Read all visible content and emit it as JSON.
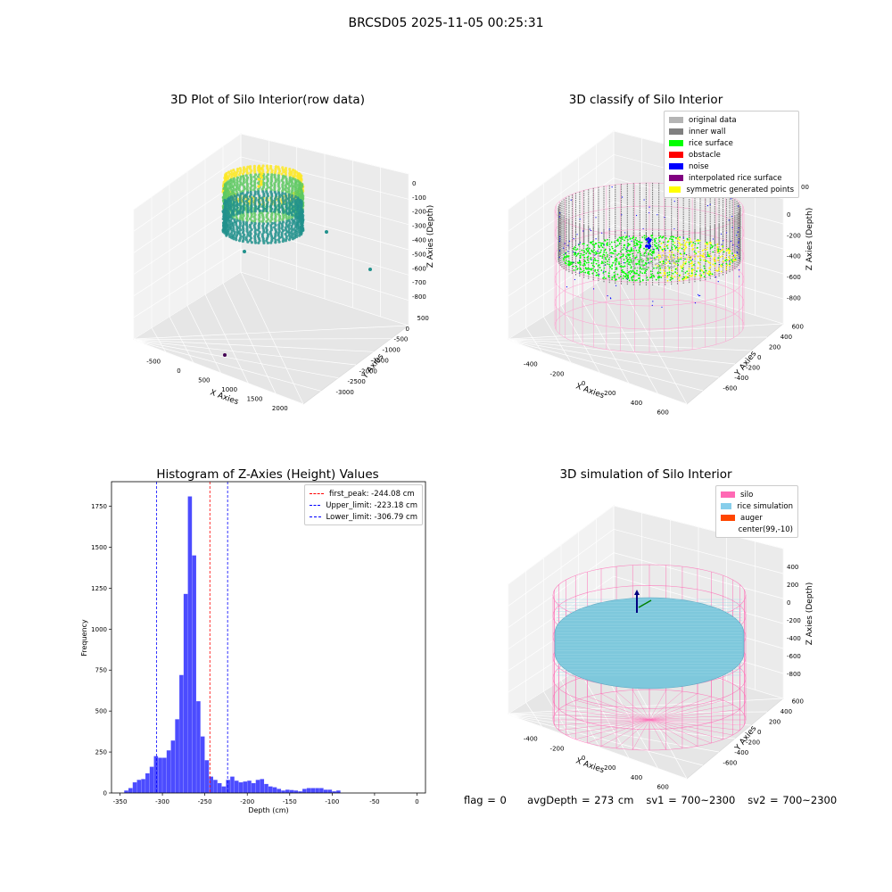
{
  "suptitle": "BRCSD05 2025-11-05 00:25:31",
  "footer": {
    "flag": "flag = 0",
    "avg_depth": "avgDepth = 273 cm",
    "sv1": "sv1 = 700~2300",
    "sv2": "sv2 = 700~2300"
  },
  "chart_data": [
    {
      "type": "scatter",
      "kind": "3d",
      "title": "3D Plot of Silo Interior(row data)",
      "xlabel": "X Axies",
      "ylabel": "Y Axies",
      "zlabel": "Z Axies (Depth)",
      "x_ticks": [
        "-500",
        "0",
        "500",
        "1000",
        "1500",
        "2000"
      ],
      "y_ticks": [
        "500",
        "0",
        "-500",
        "-1000",
        "-1500",
        "-2000",
        "-2500",
        "-3000"
      ],
      "z_ticks": [
        "0",
        "-100",
        "-200",
        "-300",
        "-400",
        "-500",
        "-600",
        "-700",
        "-800"
      ],
      "colormap": [
        "#440154",
        "#21918c",
        "#5ec962",
        "#fde725"
      ],
      "outliers": [
        {
          "x": 700,
          "y": -2900,
          "z": -800
        },
        {
          "x": 200,
          "y": -300,
          "z": -450
        },
        {
          "x": 1500,
          "y": -1200,
          "z": -450
        },
        {
          "x": 1600,
          "y": -500,
          "z": -350
        }
      ]
    },
    {
      "type": "scatter",
      "kind": "3d",
      "title": "3D classify of Silo Interior",
      "xlabel": "X Axies",
      "ylabel": "Y Axies",
      "zlabel": "Z Axies (Depth)",
      "x_ticks": [
        "-400",
        "-200",
        "0",
        "200",
        "400",
        "600"
      ],
      "y_ticks": [
        "600",
        "400",
        "200",
        "0",
        "-200",
        "-400",
        "-600"
      ],
      "z_ticks": [
        "200",
        "0",
        "-200",
        "-400",
        "-600",
        "-800"
      ],
      "z_ticks_partial": [
        "00"
      ],
      "legend": [
        {
          "label": "original data",
          "color": "#b4b4b4"
        },
        {
          "label": "inner wall",
          "color": "#808080"
        },
        {
          "label": "rice surface",
          "color": "#00ff00"
        },
        {
          "label": "obstacle",
          "color": "#ff0000"
        },
        {
          "label": "noise",
          "color": "#0000ff"
        },
        {
          "label": "interpolated rice surface",
          "color": "#800080"
        },
        {
          "label": "symmetric generated points",
          "color": "#ffff00"
        }
      ]
    },
    {
      "type": "bar",
      "kind": "histogram",
      "title": "Histogram of Z-Axies (Height) Values",
      "xlabel": "Depth (cm)",
      "ylabel": "Frequency",
      "xlim": [
        -360,
        10
      ],
      "ylim": [
        0,
        1900
      ],
      "x_ticks": [
        -350,
        -300,
        -250,
        -200,
        -150,
        -100,
        -50,
        0
      ],
      "y_ticks": [
        0,
        250,
        500,
        750,
        1000,
        1250,
        1500,
        1750
      ],
      "bar_color": "#4c4cff",
      "bins": {
        "start": -350,
        "width": 5,
        "counts": [
          0,
          15,
          30,
          65,
          80,
          85,
          120,
          160,
          225,
          215,
          215,
          260,
          320,
          450,
          720,
          1215,
          1810,
          1450,
          560,
          345,
          200,
          100,
          80,
          60,
          40,
          80,
          100,
          75,
          65,
          70,
          75,
          60,
          80,
          85,
          55,
          40,
          35,
          25,
          15,
          20,
          18,
          15,
          10,
          25,
          30,
          30,
          30,
          30,
          20,
          20,
          10,
          15
        ]
      },
      "lines": [
        {
          "label": "first_peak: -244.08 cm",
          "x": -244.08,
          "color": "#ff0000"
        },
        {
          "label": "Upper_limit: -223.18 cm",
          "x": -223.18,
          "color": "#0000ff"
        },
        {
          "label": "Lower_limit: -306.79 cm",
          "x": -306.79,
          "color": "#0000ff"
        }
      ]
    },
    {
      "type": "scatter",
      "kind": "3d",
      "title": "3D simulation of Silo Interior",
      "xlabel": "X Axies",
      "ylabel": "Y Axies",
      "zlabel": "Z Axies (Depth)",
      "x_ticks": [
        "-400",
        "-200",
        "0",
        "200",
        "400",
        "600"
      ],
      "y_ticks": [
        "600",
        "400",
        "200",
        "0",
        "-200",
        "-400",
        "-600"
      ],
      "z_ticks": [
        "400",
        "200",
        "0",
        "-200",
        "-400",
        "-600",
        "-800"
      ],
      "legend": [
        {
          "label": "silo",
          "color": "#ff69b4"
        },
        {
          "label": "rice simulation",
          "color": "#87ceeb"
        },
        {
          "label": "auger",
          "color": "#ff4500"
        },
        {
          "label": "center(99,-10)",
          "color": "#ffffff"
        }
      ]
    }
  ]
}
